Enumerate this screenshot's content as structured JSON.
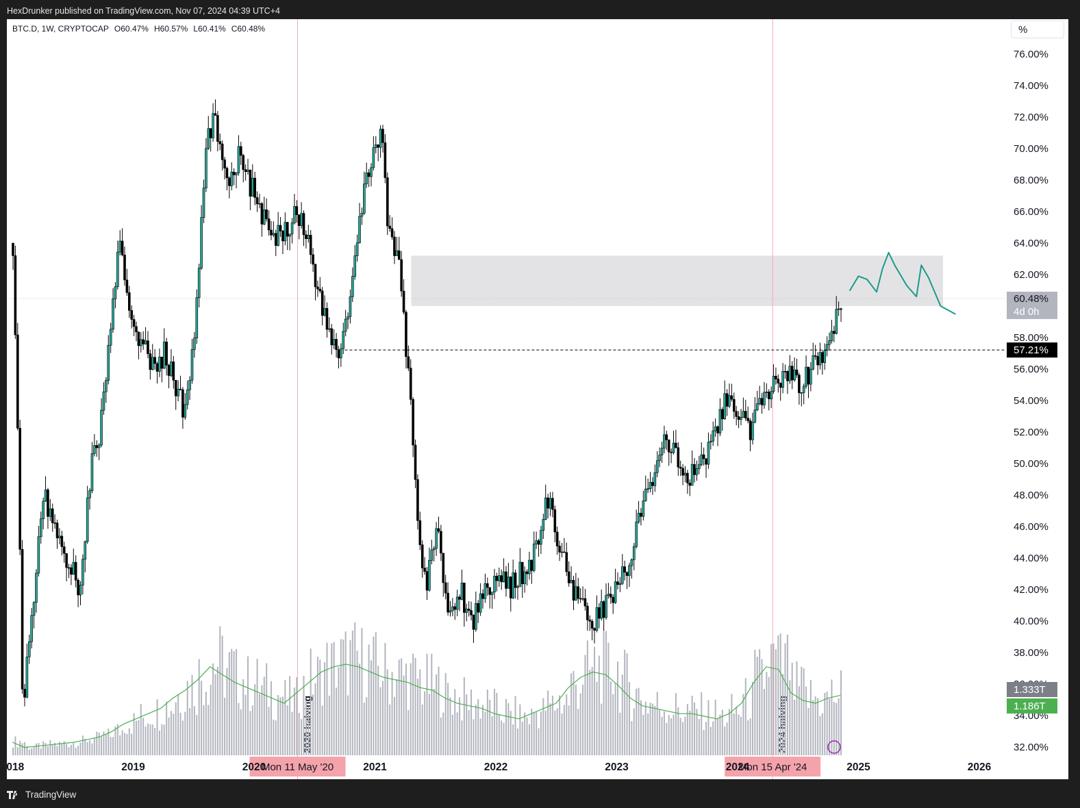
{
  "header": {
    "publish_line": "HexDrunker published on TradingView.com, Nov 07, 2024 04:39 UTC+4"
  },
  "footer": {
    "brand": "TradingView"
  },
  "legend": {
    "symbol": "BTC.D, 1W, CRYPTOCAP",
    "open": "O60.47%",
    "high": "H60.57%",
    "low": "L60.41%",
    "close": "C60.48%"
  },
  "scale_button": "%",
  "colors": {
    "up": "#26a69a",
    "down": "#000000",
    "halving_line": "#f7a9b1",
    "zone": "#e3e3e6",
    "projection": "#1a9a8a",
    "volume": "#b2b5be",
    "volume_ma": "#4caf50"
  },
  "price_badges": {
    "last": "60.48%",
    "countdown": "4d 0h",
    "level": "57.21%",
    "volume": "1.333T",
    "volume_ma": "1.186T"
  },
  "halvings": [
    {
      "label": "2020 halving",
      "date": "Mon 11 May '20"
    },
    {
      "label": "2024 halving",
      "date": "Mon 15 Apr '24"
    }
  ],
  "chart_data": {
    "type": "line",
    "title": "",
    "xlabel": "",
    "ylabel": "",
    "ylim": [
      31,
      78
    ],
    "y_ticks": [
      "76.00%",
      "74.00%",
      "72.00%",
      "70.00%",
      "68.00%",
      "66.00%",
      "64.00%",
      "62.00%",
      "60.00%",
      "58.00%",
      "56.00%",
      "54.00%",
      "52.00%",
      "50.00%",
      "48.00%",
      "46.00%",
      "44.00%",
      "42.00%",
      "40.00%",
      "38.00%",
      "36.00%",
      "34.00%",
      "32.00%"
    ],
    "x_ticks": [
      "2018",
      "2019",
      "2020",
      "2021",
      "2022",
      "2023",
      "2024",
      "2025",
      "2026"
    ],
    "x": [
      2018.0,
      2018.05,
      2018.08,
      2018.15,
      2018.25,
      2018.35,
      2018.45,
      2018.55,
      2018.65,
      2018.72,
      2018.8,
      2018.88,
      2018.95,
      2019.05,
      2019.15,
      2019.25,
      2019.35,
      2019.42,
      2019.5,
      2019.55,
      2019.6,
      2019.65,
      2019.72,
      2019.8,
      2019.88,
      2019.95,
      2020.05,
      2020.15,
      2020.25,
      2020.36,
      2020.45,
      2020.55,
      2020.62,
      2020.7,
      2020.78,
      2020.85,
      2020.92,
      2021.0,
      2021.05,
      2021.1,
      2021.2,
      2021.3,
      2021.36,
      2021.42,
      2021.5,
      2021.55,
      2021.6,
      2021.7,
      2021.8,
      2021.9,
      2022.0,
      2022.1,
      2022.2,
      2022.3,
      2022.4,
      2022.45,
      2022.5,
      2022.55,
      2022.6,
      2022.7,
      2022.8,
      2022.9,
      2023.0,
      2023.05,
      2023.1,
      2023.2,
      2023.3,
      2023.4,
      2023.5,
      2023.6,
      2023.7,
      2023.8,
      2023.9,
      2024.0,
      2024.1,
      2024.2,
      2024.29,
      2024.4,
      2024.5,
      2024.6,
      2024.7,
      2024.78,
      2024.85
    ],
    "series": [
      {
        "values": [
          64,
          48,
          34,
          40,
          48,
          46,
          44,
          42,
          50,
          52,
          58,
          64,
          60,
          58,
          56,
          57,
          55,
          53,
          58,
          64,
          70,
          72,
          70,
          68,
          70,
          68,
          66,
          64,
          65,
          66,
          64,
          60,
          58,
          57,
          60,
          64,
          68,
          70,
          72,
          65,
          62,
          53,
          45,
          42,
          46,
          44,
          40,
          42,
          40,
          42,
          43,
          42,
          43,
          44,
          47,
          48,
          45,
          44,
          42,
          41,
          40,
          41,
          42,
          43,
          44,
          47,
          49,
          52,
          50,
          49,
          50,
          52,
          54,
          53,
          52,
          54,
          55,
          56,
          55,
          56,
          57,
          58,
          60.48
        ]
      }
    ],
    "resistance_zone": {
      "y_range": [
        60.0,
        63.2
      ],
      "x_range": [
        2021.3,
        2025.7
      ]
    },
    "horizontal_level": {
      "y": 57.21,
      "x_start": 2020.75
    },
    "projection_path": {
      "x": [
        2024.93,
        2025.0,
        2025.07,
        2025.15,
        2025.2,
        2025.25,
        2025.3,
        2025.4,
        2025.48,
        2025.52,
        2025.58,
        2025.68,
        2025.8
      ],
      "y": [
        61.0,
        61.9,
        61.7,
        60.9,
        62.4,
        63.4,
        62.6,
        61.3,
        60.6,
        62.6,
        61.8,
        60.0,
        59.5
      ]
    },
    "volume_ma_values": [
      0.5,
      0.3,
      0.35,
      0.4,
      0.45,
      0.5,
      0.6,
      0.7,
      0.9,
      1.2,
      1.4,
      1.6,
      1.8,
      2.2,
      2.5,
      2.9,
      3.4,
      3.1,
      2.8,
      2.6,
      2.4,
      2.2,
      2.0,
      2.4,
      2.8,
      3.2,
      3.4,
      3.5,
      3.4,
      3.2,
      3.0,
      2.9,
      2.8,
      2.6,
      2.5,
      2.2,
      2.0,
      1.9,
      1.8,
      1.6,
      1.5,
      1.4,
      1.6,
      1.8,
      2.0,
      2.6,
      3.0,
      3.2,
      3.1,
      2.7,
      2.2,
      1.9,
      1.8,
      1.7,
      1.6,
      1.6,
      1.5,
      1.4,
      1.6,
      2.0,
      2.8,
      3.4,
      3.3,
      2.4,
      2.1,
      2.0,
      2.2,
      2.3
    ]
  }
}
